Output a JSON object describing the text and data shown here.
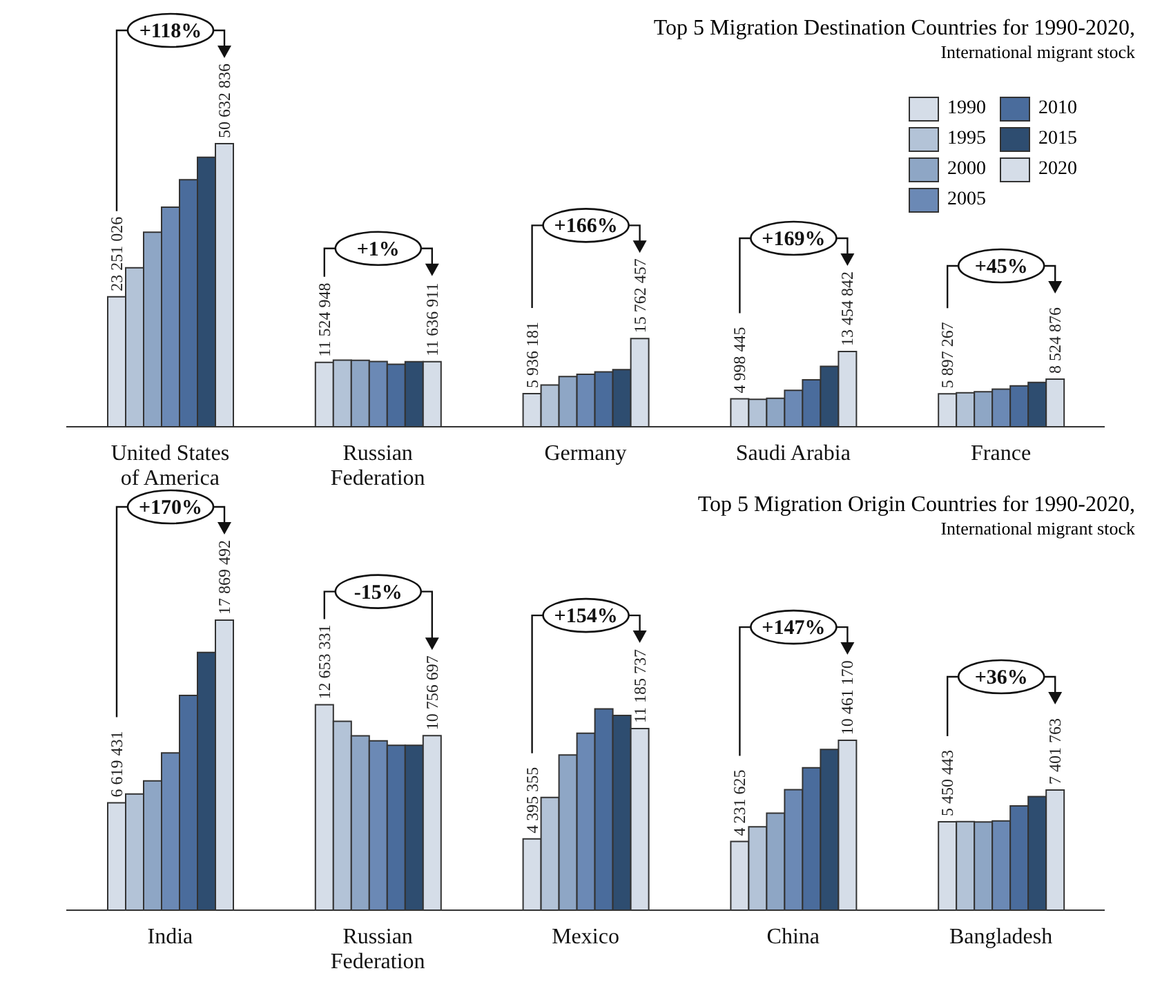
{
  "chart_data": [
    {
      "type": "bar",
      "title": "Top 5 Migration Destination Countries for 1990-2020,",
      "subtitle": "International migrant stock",
      "categories": [
        "United States of America",
        "Russian Federation",
        "Germany",
        "Saudi Arabia",
        "France"
      ],
      "series": [
        {
          "name": "1990",
          "color": "#d5dde8",
          "values": [
            23251026,
            11524948,
            5936181,
            4998445,
            5897267
          ],
          "value_labels": [
            "23 251 026",
            "11 524 948",
            "5 936 181",
            "4 998 445",
            "5 897 267"
          ]
        },
        {
          "name": "1995",
          "color": "#b3c3d7",
          "values": [
            28450000,
            11930000,
            7460000,
            4900000,
            6090000
          ]
        },
        {
          "name": "2000",
          "color": "#8ea6c5",
          "values": [
            34810000,
            11900000,
            8990000,
            5100000,
            6280000
          ]
        },
        {
          "name": "2005",
          "color": "#6b89b5",
          "values": [
            39260000,
            11670000,
            9400000,
            6500000,
            6740000
          ]
        },
        {
          "name": "2010",
          "color": "#4a6c9c",
          "values": [
            44180000,
            11190000,
            9810000,
            8400000,
            7310000
          ]
        },
        {
          "name": "2015",
          "color": "#2e4d70",
          "values": [
            48180000,
            11640000,
            10220000,
            10800000,
            7920000
          ]
        },
        {
          "name": "2020",
          "color": "#d5dde8",
          "values": [
            50632836,
            11636911,
            15762457,
            13454842,
            8524876
          ],
          "value_labels": [
            "50 632 836",
            "11 636 911",
            "15 762 457",
            "13 454 842",
            "8 524 876"
          ]
        }
      ],
      "annotations": [
        "+118%",
        "+1%",
        "+166%",
        "+169%",
        "+45%"
      ],
      "legend": "top right",
      "tick_labels": "x"
    },
    {
      "type": "bar",
      "title": "Top 5 Migration Origin Countries for 1990-2020,",
      "subtitle": "International migrant stock",
      "categories": [
        "India",
        "Russian Federation",
        "Mexico",
        "China",
        "Bangladesh"
      ],
      "series": [
        {
          "name": "1990",
          "color": "#d5dde8",
          "values": [
            6619431,
            12653331,
            4395355,
            4231625,
            5450443
          ],
          "value_labels": [
            "6 619 431",
            "12 653 331",
            "4 395 355",
            "4 231 625",
            "5 450 443"
          ]
        },
        {
          "name": "1995",
          "color": "#b3c3d7",
          "values": [
            7160000,
            11640000,
            6950000,
            5140000,
            5460000
          ]
        },
        {
          "name": "2000",
          "color": "#8ea6c5",
          "values": [
            7970000,
            10740000,
            9560000,
            5980000,
            5440000
          ]
        },
        {
          "name": "2005",
          "color": "#6b89b5",
          "values": [
            9690000,
            10430000,
            10900000,
            7420000,
            5500000
          ]
        },
        {
          "name": "2010",
          "color": "#4a6c9c",
          "values": [
            13230000,
            10160000,
            12400000,
            8770000,
            6420000
          ]
        },
        {
          "name": "2015",
          "color": "#2e4d70",
          "values": [
            15880000,
            10160000,
            12000000,
            9900000,
            7000000
          ]
        },
        {
          "name": "2020",
          "color": "#d5dde8",
          "values": [
            17869492,
            10756697,
            11185737,
            10461170,
            7401763
          ],
          "value_labels": [
            "17 869 492",
            "10 756 697",
            "11 185 737",
            "10 461 170",
            "7 401 763"
          ]
        }
      ],
      "annotations": [
        "+170%",
        "-15%",
        "+154%",
        "+147%",
        "+36%"
      ],
      "legend": false,
      "tick_labels": "x"
    }
  ]
}
